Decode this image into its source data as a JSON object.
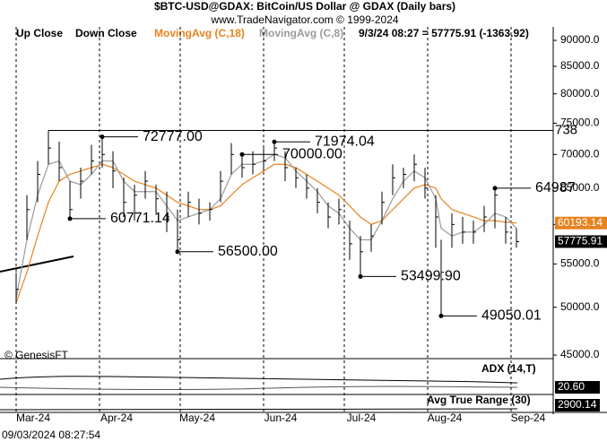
{
  "header": {
    "title": "$BTC-USD@GDAX:  BitCoin/US Dollar @ GDAX  (Daily bars)",
    "subtitle": "www.TradeNavigator.com © 1999-2024"
  },
  "legend": {
    "up": "Up Close",
    "down": "Down Close",
    "quote": "9/3/24 08:27 = 57775.91 (-1363.92)"
  },
  "chart_data": {
    "type": "ohlc",
    "color": "#000000",
    "x": [
      0,
      4,
      8,
      12,
      16,
      20,
      24,
      28,
      32,
      36,
      40,
      44,
      48,
      52,
      56,
      60,
      64,
      68,
      72,
      76,
      80,
      84,
      88,
      92,
      96,
      100,
      104,
      108,
      112,
      116,
      120,
      124,
      128,
      132,
      136,
      140,
      144,
      148,
      152,
      156,
      158,
      162,
      166,
      170,
      174,
      178,
      182,
      186
    ],
    "high": [
      54000,
      64000,
      69000,
      73800,
      72000,
      66000,
      68000,
      71500,
      72777,
      70500,
      66500,
      65500,
      67500,
      65500,
      64500,
      62000,
      64500,
      63500,
      63000,
      67500,
      71800,
      70000,
      70500,
      71000,
      71974.04,
      70500,
      68000,
      67000,
      65000,
      63000,
      63500,
      60500,
      58500,
      60000,
      64500,
      68500,
      68000,
      70000,
      68000,
      64000,
      58000,
      61500,
      61000,
      60500,
      62500,
      64987,
      61000,
      59500
    ],
    "low": [
      50500,
      58000,
      63000,
      68500,
      66000,
      60771.14,
      63500,
      67000,
      68000,
      65000,
      61000,
      60500,
      63500,
      61500,
      59000,
      56500,
      61000,
      60000,
      60500,
      63000,
      67000,
      66500,
      67000,
      67500,
      69000,
      66000,
      65000,
      63500,
      61500,
      59500,
      60000,
      55500,
      53499.9,
      56500,
      60000,
      64000,
      65000,
      66000,
      63500,
      57000,
      49050.01,
      57000,
      57500,
      57500,
      59000,
      59500,
      57500,
      57000
    ],
    "close": [
      52000,
      62000,
      67000,
      71000,
      68000,
      62000,
      66000,
      69000,
      70000,
      67500,
      63000,
      64000,
      66000,
      63500,
      61000,
      58000,
      63000,
      61500,
      62000,
      66000,
      70000,
      68000,
      68500,
      69000,
      71000,
      68000,
      66500,
      65000,
      63000,
      61000,
      62000,
      57500,
      56500,
      58500,
      63000,
      66500,
      67000,
      68500,
      65000,
      61000,
      54000,
      60000,
      59000,
      59000,
      61000,
      64000,
      59000,
      57775.91
    ],
    "series": [
      {
        "name": "MovingAvg (C,18)",
        "color": "#e8821e",
        "values": [
          50500,
          54000,
          58500,
          63000,
          66000,
          67000,
          67500,
          68000,
          68500,
          68000,
          67000,
          66000,
          65500,
          65000,
          64000,
          63000,
          62500,
          62000,
          62000,
          62500,
          64000,
          65500,
          66500,
          67500,
          68500,
          68500,
          68000,
          67000,
          66000,
          65000,
          64000,
          62500,
          61000,
          60000,
          60500,
          62000,
          63500,
          65000,
          65500,
          65000,
          63500,
          62000,
          61500,
          61000,
          60500,
          60500,
          60300,
          60193.14
        ]
      },
      {
        "name": "MovingAvg (C,8)",
        "color": "#9a9a9a",
        "values": [
          51000,
          58000,
          64000,
          68500,
          69000,
          66000,
          65500,
          67000,
          69000,
          69000,
          66000,
          64500,
          64500,
          64500,
          62500,
          60500,
          61000,
          61500,
          62000,
          63500,
          67000,
          68500,
          68500,
          69000,
          70000,
          69500,
          67500,
          66000,
          64500,
          62500,
          61500,
          59500,
          58000,
          58000,
          60500,
          63500,
          66000,
          67500,
          66500,
          63500,
          59500,
          58500,
          59000,
          59000,
          60000,
          61500,
          61000,
          59500
        ]
      }
    ],
    "xlim": [
      -6,
      199
    ],
    "xticks": [
      {
        "value": 0,
        "label": "Mar-24"
      },
      {
        "value": 31,
        "label": "Apr-24"
      },
      {
        "value": 61,
        "label": "May-24"
      },
      {
        "value": 92,
        "label": "Jun-24"
      },
      {
        "value": 122,
        "label": "Jul-24"
      },
      {
        "value": 153,
        "label": "Aug-24"
      },
      {
        "value": 184,
        "label": "Sep-24"
      }
    ],
    "ylim": [
      44650,
      91800
    ],
    "log": true,
    "yticks": [
      {
        "value": 45000,
        "label": "45000.0"
      },
      {
        "value": 50000,
        "label": "50000.0"
      },
      {
        "value": 55000,
        "label": "55000.0"
      },
      {
        "value": 60000,
        "label": "60000.0"
      },
      {
        "value": 65000,
        "label": "65000.0"
      },
      {
        "value": 70000,
        "label": "70000.0"
      },
      {
        "value": 75000,
        "label": "75000.0"
      },
      {
        "value": 80000,
        "label": "80000.0"
      },
      {
        "value": 85000,
        "label": "85000.0"
      },
      {
        "value": 90000,
        "label": "90000.0"
      }
    ],
    "annotations": [
      {
        "label": "72777.00",
        "value": 72777
      },
      {
        "label": "71974.04",
        "value": 71974.04
      },
      {
        "label": "70000.00",
        "value": 70000
      },
      {
        "label": "64987",
        "value": 64987
      },
      {
        "label": "60771.14",
        "value": 60771.14
      },
      {
        "label": "56500.00",
        "value": 56500
      },
      {
        "label": "53499.90",
        "value": 53499.9
      },
      {
        "label": "49050.01",
        "value": 49050.01
      }
    ],
    "peak_label": "738",
    "copyright": "© GenesisFT",
    "adx": {
      "label": "ADX (14,T)",
      "value": {
        "value": 20.6,
        "label": "20.60"
      }
    },
    "atr": {
      "label": "Avg True Range (30)",
      "value": 2900.14
    }
  },
  "footer": {
    "timestamp": "09/03/2024 08:27:54"
  }
}
